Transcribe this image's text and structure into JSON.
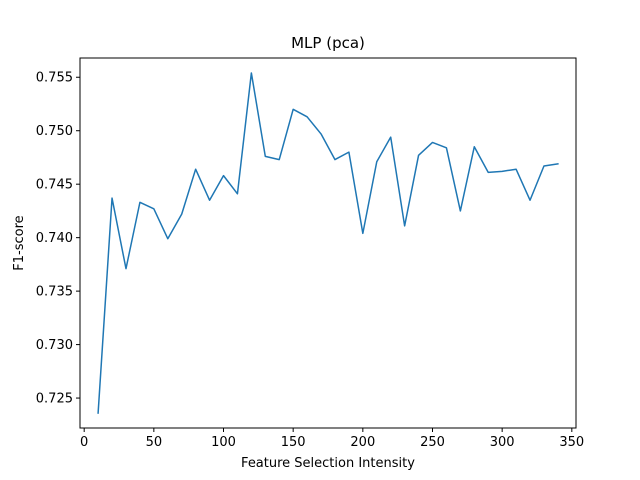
{
  "chart_data": {
    "type": "line",
    "title": "MLP (pca)",
    "xlabel": "Feature Selection Intensity",
    "ylabel": "F1-score",
    "xlim": [
      -3,
      353
    ],
    "ylim": [
      0.7222,
      0.7568
    ],
    "xticks": [
      0,
      50,
      100,
      150,
      200,
      250,
      300,
      350
    ],
    "yticks": [
      0.725,
      0.73,
      0.735,
      0.74,
      0.745,
      0.75,
      0.755
    ],
    "ytick_labels": [
      "0.725",
      "0.730",
      "0.735",
      "0.740",
      "0.745",
      "0.750",
      "0.755"
    ],
    "grid": false,
    "series": [
      {
        "color": "#1f77b4",
        "x": [
          10,
          20,
          30,
          40,
          50,
          60,
          70,
          80,
          90,
          100,
          110,
          120,
          130,
          140,
          150,
          160,
          170,
          180,
          190,
          200,
          210,
          220,
          230,
          240,
          250,
          260,
          270,
          280,
          290,
          300,
          310,
          320,
          330,
          340
        ],
        "y": [
          0.7236,
          0.7437,
          0.7371,
          0.7433,
          0.7427,
          0.7399,
          0.7422,
          0.7464,
          0.7435,
          0.7458,
          0.7441,
          0.7554,
          0.7476,
          0.7473,
          0.752,
          0.7513,
          0.7497,
          0.7473,
          0.748,
          0.7404,
          0.7471,
          0.7494,
          0.7411,
          0.7477,
          0.7489,
          0.7484,
          0.7425,
          0.7485,
          0.7461,
          0.7462,
          0.7464,
          0.7435,
          0.7467,
          0.7469
        ]
      }
    ]
  }
}
